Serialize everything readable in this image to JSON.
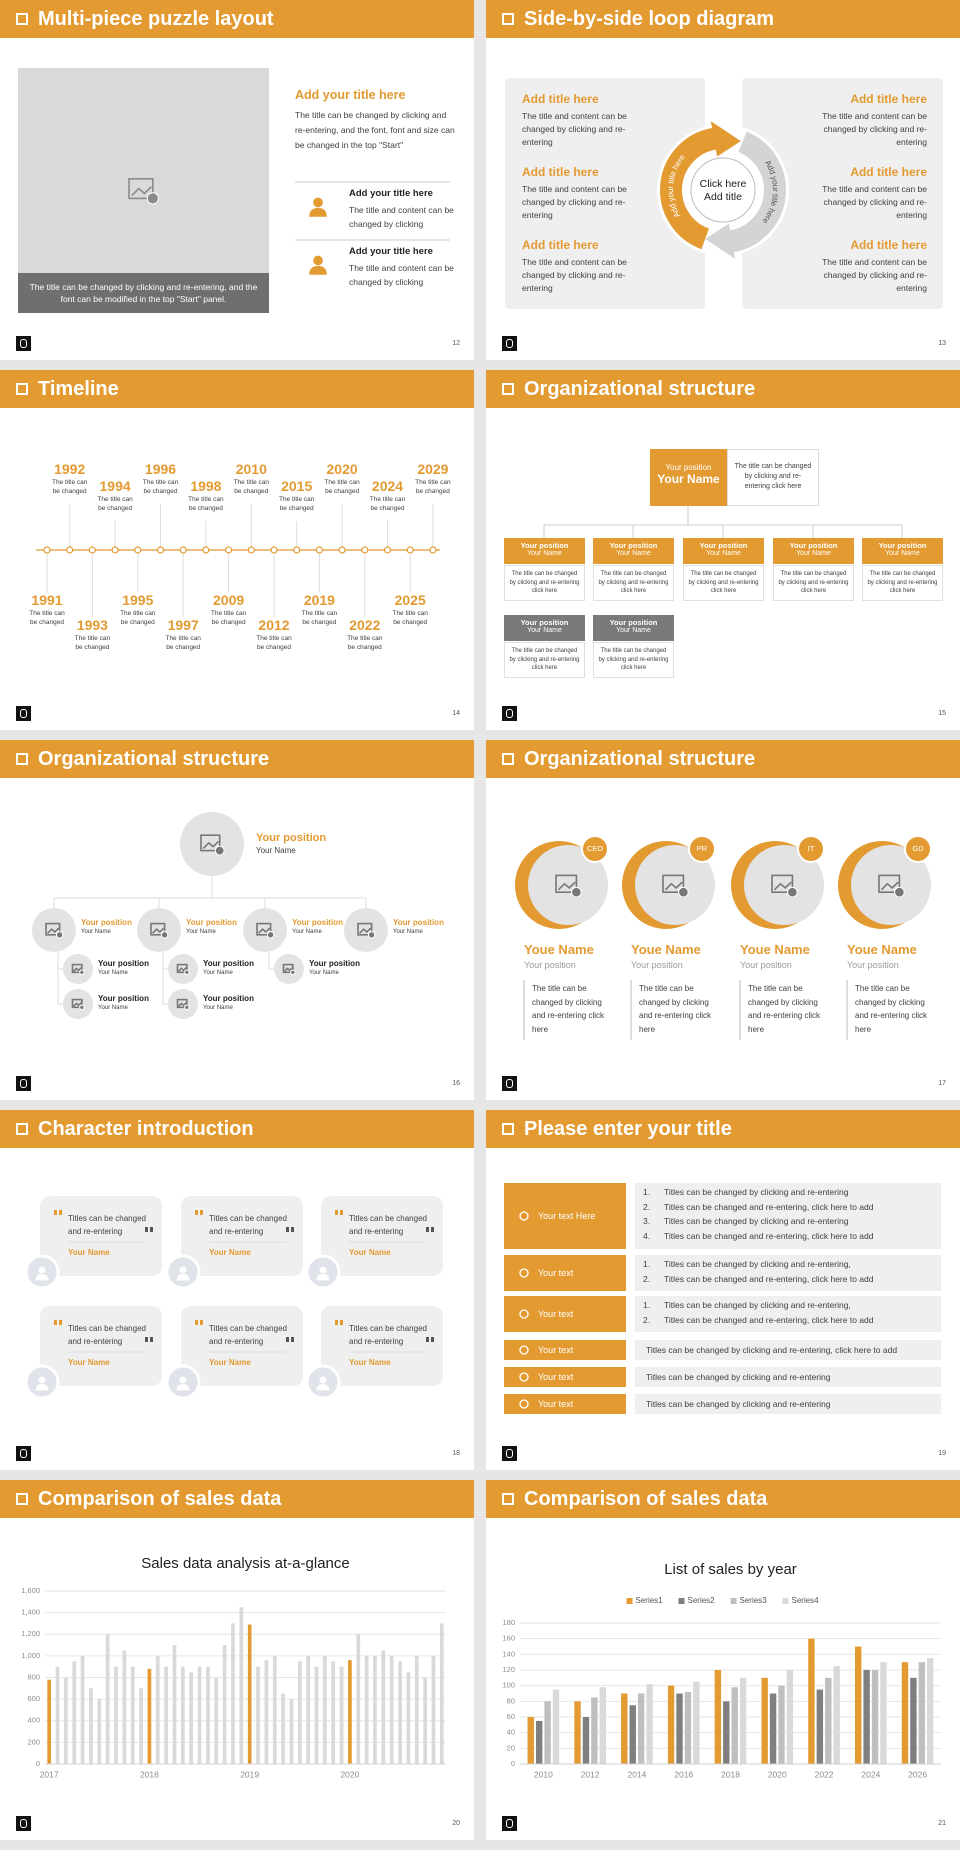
{
  "slides": [
    {
      "title": "Multi-piece puzzle layout",
      "page": "12",
      "caption": "The title can be changed by clicking and re-entering, and the font can be modified in the top \"Start\" panel.",
      "heading": "Add your title here",
      "body": "The title can be changed by clicking and re-entering, and the font, font and size can be changed in the top \"Start\"",
      "items": [
        {
          "title": "Add your title here",
          "text": "The title and content can be changed by clicking"
        },
        {
          "title": "Add your title here",
          "text": "The title and content can be changed by clicking"
        }
      ]
    },
    {
      "title": "Side-by-side loop diagram",
      "page": "13",
      "center": [
        "Click here",
        "Add title"
      ],
      "arc_left": "Add your title here",
      "arc_right": "Add your title here",
      "left": [
        {
          "title": "Add title here",
          "text": "The title and content can be changed by clicking and re-entering"
        },
        {
          "title": "Add title here",
          "text": "The title and content can be changed by clicking and re-entering"
        },
        {
          "title": "Add title here",
          "text": "The title and content can be changed by clicking and re-entering"
        }
      ],
      "right": [
        {
          "title": "Add title here",
          "text": "The title and content can be changed by clicking and re-entering"
        },
        {
          "title": "Add title here",
          "text": "The title and content can be changed by clicking and re-entering"
        },
        {
          "title": "Add title here",
          "text": "The title and content can be changed by clicking and re-entering"
        }
      ]
    },
    {
      "title": "Timeline",
      "page": "14",
      "events": [
        {
          "year": "1991",
          "text": "The title can be changed"
        },
        {
          "year": "1992",
          "text": "The title can be changed"
        },
        {
          "year": "1993",
          "text": "The title can be changed"
        },
        {
          "year": "1994",
          "text": "The title can be changed"
        },
        {
          "year": "1995",
          "text": "The title can be changed"
        },
        {
          "year": "1996",
          "text": "The title can be changed"
        },
        {
          "year": "1997",
          "text": "The title can be changed"
        },
        {
          "year": "1998",
          "text": "The title can be changed"
        },
        {
          "year": "2009",
          "text": "The title can be changed"
        },
        {
          "year": "2010",
          "text": "The title can be changed"
        },
        {
          "year": "2012",
          "text": "The title can be changed"
        },
        {
          "year": "2015",
          "text": "The title can be changed"
        },
        {
          "year": "2019",
          "text": "The title can be changed"
        },
        {
          "year": "2020",
          "text": "The title can be changed"
        },
        {
          "year": "2022",
          "text": "The title can be changed"
        },
        {
          "year": "2024",
          "text": "The title can be changed"
        },
        {
          "year": "2025",
          "text": "The title can be changed"
        },
        {
          "year": "2029",
          "text": "The title can be changed"
        }
      ]
    },
    {
      "title": "Organizational structure",
      "page": "15",
      "top": {
        "position": "Your position",
        "name": "Your Name",
        "text": "The title can be changed by clicking and re-entering click here"
      },
      "boxes": [
        {
          "position": "Your position",
          "name": "Your Name",
          "text": "The title can be changed by clicking and re-entering click here"
        },
        {
          "position": "Your position",
          "name": "Your Name",
          "text": "The title can be changed by clicking and re-entering click here"
        },
        {
          "position": "Your position",
          "name": "Your Name",
          "text": "The title can be changed by clicking and re-entering click here"
        },
        {
          "position": "Your position",
          "name": "Your Name",
          "text": "The title can be changed by clicking and re-entering click here"
        },
        {
          "position": "Your position",
          "name": "Your Name",
          "text": "The title can be changed by clicking and re-entering click here"
        },
        {
          "position": "Your position",
          "name": "Your Name",
          "text": "The title can be changed by clicking and re-entering click here"
        },
        {
          "position": "Your position",
          "name": "Your Name",
          "text": "The title can be changed by clicking and re-entering click here"
        }
      ]
    },
    {
      "title": "Organizational structure",
      "page": "16",
      "top": {
        "position": "Your position",
        "name": "Your Name"
      },
      "branches": [
        {
          "position": "Your position",
          "name": "Your Name",
          "children": [
            {
              "position": "Your position",
              "name": "Your Name"
            },
            {
              "position": "Your position",
              "name": "Your Name"
            }
          ]
        },
        {
          "position": "Your position",
          "name": "Your Name",
          "children": [
            {
              "position": "Your position",
              "name": "Your Name"
            },
            {
              "position": "Your position",
              "name": "Your Name"
            }
          ]
        },
        {
          "position": "Your position",
          "name": "Your Name",
          "children": [
            {
              "position": "Your position",
              "name": "Your Name"
            }
          ]
        },
        {
          "position": "Your position",
          "name": "Your Name",
          "children": []
        }
      ]
    },
    {
      "title": "Organizational structure",
      "page": "17",
      "cards": [
        {
          "badge": "CEO",
          "name": "Youe Name",
          "position": "Your position",
          "text": "The title can be changed by clicking and re-entering click here"
        },
        {
          "badge": "PR",
          "name": "Youe Name",
          "position": "Your position",
          "text": "The title can be changed by clicking and re-entering click here"
        },
        {
          "badge": "IT",
          "name": "Youe Name",
          "position": "Your position",
          "text": "The title can be changed by clicking and re-entering click here"
        },
        {
          "badge": "GD",
          "name": "Youe Name",
          "position": "Your position",
          "text": "The title can be changed by clicking and re-entering click here"
        }
      ]
    },
    {
      "title": "Character introduction",
      "page": "18",
      "cards": [
        {
          "quote": "Titles can be changed and re-entering",
          "name": "Your Name"
        },
        {
          "quote": "Titles can be changed and re-entering",
          "name": "Your Name"
        },
        {
          "quote": "Titles can be changed and re-entering",
          "name": "Your Name"
        },
        {
          "quote": "Titles can be changed and re-entering",
          "name": "Your Name"
        },
        {
          "quote": "Titles can be changed and re-entering",
          "name": "Your Name"
        },
        {
          "quote": "Titles can be changed and re-entering",
          "name": "Your Name"
        }
      ]
    },
    {
      "title": "Please enter your title",
      "page": "19",
      "rows": [
        {
          "label": "Your text Here",
          "items": [
            {
              "num": "1.",
              "text": "Titles can be changed by clicking and re-entering"
            },
            {
              "num": "2.",
              "text": "Titles can be changed and re-entering, click here to add"
            },
            {
              "num": "3.",
              "text": "Titles can be changed by clicking and re-entering"
            },
            {
              "num": "4.",
              "text": "Titles can be changed and re-entering, click here to add"
            }
          ]
        },
        {
          "label": "Your text",
          "items": [
            {
              "num": "1.",
              "text": "Titles can be changed by clicking and re-entering,"
            },
            {
              "num": "2.",
              "text": "Titles can be changed and re-entering, click here to add"
            }
          ]
        },
        {
          "label": "Your text",
          "items": [
            {
              "num": "1.",
              "text": "Titles can be changed by clicking and re-entering,"
            },
            {
              "num": "2.",
              "text": "Titles can be changed and re-entering, click here to add"
            }
          ]
        },
        {
          "label": "Your text",
          "text": "Titles can be changed by clicking and re-entering, click here to add"
        },
        {
          "label": "Your text",
          "text": "Titles can be changed by clicking and re-entering"
        },
        {
          "label": "Your text",
          "text": "Titles can be changed by clicking and re-entering"
        }
      ]
    },
    {
      "title": "Comparison of sales data",
      "page": "20",
      "chart_data": {
        "type": "bar",
        "title": "Sales data analysis at-a-glance",
        "categories": [
          "2017",
          null,
          null,
          null,
          null,
          null,
          null,
          null,
          null,
          null,
          null,
          null,
          "2018",
          null,
          null,
          null,
          null,
          null,
          null,
          null,
          null,
          null,
          null,
          null,
          "2019",
          null,
          null,
          null,
          null,
          null,
          null,
          null,
          null,
          null,
          null,
          null,
          "2020",
          null,
          null,
          null,
          null,
          null,
          null,
          null,
          null,
          null,
          null,
          null
        ],
        "values": [
          780,
          900,
          800,
          950,
          1000,
          700,
          600,
          1200,
          900,
          1050,
          900,
          700,
          880,
          1000,
          900,
          1100,
          900,
          850,
          900,
          900,
          800,
          1100,
          1300,
          1450,
          1290,
          900,
          960,
          1000,
          650,
          600,
          950,
          1000,
          900,
          1000,
          950,
          900,
          960,
          1200,
          1000,
          1000,
          1050,
          1000,
          950,
          850,
          1000,
          800,
          1000,
          1300
        ],
        "color": "#d9d9d9",
        "highlight_color": "#e39a31",
        "ylim": [
          0,
          1600
        ],
        "yticks": [
          0,
          200,
          400,
          600,
          800,
          {
            "value": 1000,
            "label": "1,000"
          },
          {
            "value": 1200,
            "label": "1,200"
          },
          {
            "value": 1400,
            "label": "1,400"
          },
          {
            "value": 1600,
            "label": "1,600"
          }
        ],
        "grid": true
      }
    },
    {
      "title": "Comparison of sales data",
      "page": "21",
      "chart_data": {
        "type": "bar",
        "title": "List of sales by year",
        "categories": [
          "2010",
          "2012",
          "2014",
          "2016",
          "2018",
          "2020",
          "2022",
          "2024",
          "2026"
        ],
        "series": [
          {
            "name": "Series1",
            "color": "#e39a31",
            "values": [
              60,
              80,
              90,
              100,
              120,
              110,
              160,
              150,
              130
            ]
          },
          {
            "name": "Series2",
            "color": "#7f7f7f",
            "values": [
              55,
              60,
              75,
              90,
              80,
              90,
              95,
              120,
              110
            ]
          },
          {
            "name": "Series3",
            "color": "#bfbfbf",
            "values": [
              80,
              85,
              90,
              92,
              98,
              100,
              110,
              120,
              130
            ]
          },
          {
            "name": "Series4",
            "color": "#d9d9d9",
            "values": [
              95,
              98,
              102,
              105,
              110,
              120,
              125,
              130,
              135
            ]
          }
        ],
        "ylim": [
          0,
          180
        ],
        "yticks": [
          0,
          20,
          40,
          60,
          80,
          100,
          120,
          140,
          160,
          180
        ],
        "grid": true,
        "legend": "top"
      }
    }
  ]
}
